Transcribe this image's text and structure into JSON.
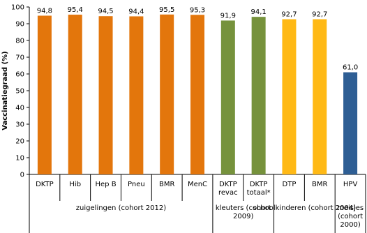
{
  "chart_data": {
    "type": "bar",
    "y_label": "Vaccinatiegraad (%)",
    "ylim": [
      0,
      100
    ],
    "yticks": [
      0,
      10,
      20,
      30,
      40,
      50,
      60,
      70,
      80,
      90,
      100
    ],
    "groups": [
      {
        "label": "zuigelingen (cohort 2012)",
        "color": "#e3760c",
        "categories": [
          "DKTP",
          "Hib",
          "Hep B",
          "Pneu",
          "BMR",
          "MenC"
        ],
        "values": [
          94.8,
          95.4,
          94.5,
          94.4,
          95.5,
          95.3
        ],
        "value_labels": [
          "94,8",
          "95,4",
          "94,5",
          "94,4",
          "95,5",
          "95,3"
        ]
      },
      {
        "label": "kleuters (cohort\n2009)",
        "color": "#76923c",
        "categories": [
          "DKTP\nrevac",
          "DKTP\ntotaal*"
        ],
        "values": [
          91.9,
          94.1
        ],
        "value_labels": [
          "91,9",
          "94,1"
        ]
      },
      {
        "label": "schoolkinderen (cohort 2004)",
        "color": "#ffb915",
        "categories": [
          "DTP",
          "BMR"
        ],
        "values": [
          92.7,
          92.7
        ],
        "value_labels": [
          "92,7",
          "92,7"
        ]
      },
      {
        "label": "meisjes\n(cohort\n2000)",
        "color": "#2e5e94",
        "categories": [
          "HPV"
        ],
        "values": [
          61.0
        ],
        "value_labels": [
          "61,0"
        ]
      }
    ]
  }
}
